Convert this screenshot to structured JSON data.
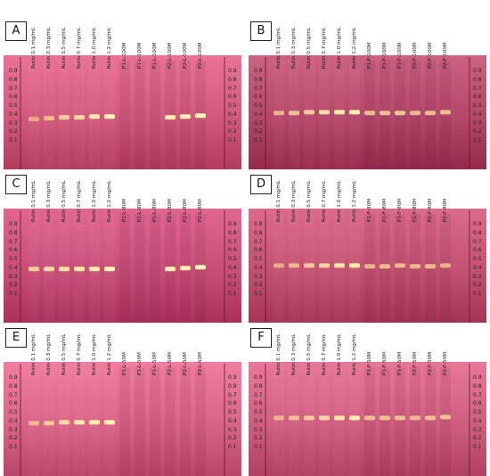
{
  "rf_ticks": [
    "0.9",
    "0.8",
    "0.7",
    "0.6",
    "0.5",
    "0.4",
    "0.3",
    "0.2",
    "0.1"
  ],
  "panels": [
    {
      "letter": "A",
      "lanes": [
        "Rutin 0.1 mg/mL",
        "Rutin 0.3 mg/mL",
        "Rutin 0.5 mg/mL",
        "Rutin 0.7 mg/mL",
        "Rutin 1.0 mg/mL",
        "Rutin 1.2 mg/mL",
        "P1-L-100M",
        "P1-L-100M",
        "P1-L-100M",
        "P2-L-100M",
        "P2-L-100M",
        "P2-L-100M"
      ],
      "band_rf": [
        0.35,
        0.36,
        0.37,
        0.37,
        0.38,
        0.38,
        null,
        null,
        null,
        0.37,
        0.38,
        0.39
      ],
      "band_strength": [
        0.35,
        0.5,
        0.65,
        0.75,
        0.9,
        1.0,
        0,
        0,
        0,
        0.9,
        0.95,
        1.0
      ],
      "plate_color": "#d15a7c"
    },
    {
      "letter": "B",
      "lanes": [
        "Rutin 0.1 mg/mL",
        "Rutin 0.3 mg/mL",
        "Rutin 0.5 mg/mL",
        "Rutin 0.7 mg/mL",
        "Rutin 1.0 mg/mL",
        "Rutin 1.2 mg/mL",
        "P1-F-100M",
        "P1-F-100M",
        "P1-F-100M",
        "P2-F-100M",
        "P2-F-100M",
        "P2-F-100M"
      ],
      "band_rf": [
        0.42,
        0.42,
        0.43,
        0.43,
        0.43,
        0.43,
        0.42,
        0.42,
        0.42,
        0.42,
        0.42,
        0.43
      ],
      "band_strength": [
        0.5,
        0.6,
        0.7,
        0.8,
        0.9,
        0.95,
        0.6,
        0.6,
        0.65,
        0.55,
        0.6,
        0.6
      ],
      "plate_color": "#b4486a"
    },
    {
      "letter": "C",
      "lanes": [
        "Rutin 0.1 mg/mL",
        "Rutin 0.3 mg/mL",
        "Rutin 0.5 mg/mL",
        "Rutin 0.7 mg/mL",
        "Rutin 1.0 mg/mL",
        "Rutin 1.2 mg/mL",
        "P1-L-80M",
        "P1-L-80M",
        "P1-L-80M",
        "P2-L-80M",
        "P2-L-80M",
        "P2-L-80M"
      ],
      "band_rf": [
        0.39,
        0.39,
        0.39,
        0.39,
        0.39,
        0.39,
        null,
        null,
        null,
        0.39,
        0.4,
        0.41
      ],
      "band_strength": [
        0.7,
        0.8,
        0.85,
        0.9,
        0.95,
        1.0,
        0,
        0,
        0,
        0.95,
        0.95,
        1.0
      ],
      "plate_color": "#c84e78"
    },
    {
      "letter": "D",
      "lanes": [
        "Rutin 0.1 mg/mL",
        "Rutin 0.3 mg/mL",
        "Rutin 0.5 mg/mL",
        "Rutin 0.7 mg/mL",
        "Rutin 1.0 mg/mL",
        "Rutin 1.2 mg/mL",
        "P1-F-80M",
        "P1-F-80M",
        "P1-F-80M",
        "P2-F-80M",
        "P2-F-80M",
        "P2-F-80M"
      ],
      "band_rf": [
        0.43,
        0.43,
        0.43,
        0.43,
        0.43,
        0.43,
        0.42,
        0.42,
        0.43,
        0.42,
        0.42,
        0.43
      ],
      "band_strength": [
        0.4,
        0.5,
        0.65,
        0.75,
        0.85,
        0.9,
        0.5,
        0.55,
        0.55,
        0.55,
        0.55,
        0.5
      ],
      "plate_color": "#c35272"
    },
    {
      "letter": "E",
      "lanes": [
        "Rutin 0.1 mg/mL",
        "Rutin 0.3 mg/mL",
        "Rutin 0.5 mg/mL",
        "Rutin 0.7 mg/mL",
        "Rutin 1.0 mg/mL",
        "Rutin 1.2 mg/mL",
        "P1-L-50M",
        "P1-L-50M",
        "P1-L-50M",
        "P2-L-50M",
        "P2-L-50M",
        "P2-L-50M"
      ],
      "band_rf": [
        0.38,
        0.38,
        0.39,
        0.39,
        0.39,
        0.39,
        null,
        null,
        null,
        null,
        null,
        null
      ],
      "band_strength": [
        0.45,
        0.6,
        0.75,
        0.85,
        0.9,
        0.95,
        0,
        0,
        0,
        0,
        0,
        0
      ],
      "plate_color": "#d86487"
    },
    {
      "letter": "F",
      "lanes": [
        "Rutin 0.1 mg/mL",
        "Rutin 0.3 mg/mL",
        "Rutin 0.5 mg/mL",
        "Rutin 0.7 mg/mL",
        "Rutin 1.0 mg/mL",
        "Rutin 1.2 mg/mL",
        "P1-F-50M",
        "P1-F-50M",
        "P1-F-50M",
        "P2-F-50M",
        "P2-F-50M",
        "P2-F-50M"
      ],
      "band_rf": [
        0.44,
        0.44,
        0.44,
        0.44,
        0.44,
        0.44,
        0.44,
        0.44,
        0.44,
        0.44,
        0.44,
        0.45
      ],
      "band_strength": [
        0.4,
        0.55,
        0.65,
        0.75,
        0.85,
        0.9,
        0.55,
        0.55,
        0.55,
        0.5,
        0.55,
        0.55
      ],
      "plate_color": "#cf5e80"
    }
  ]
}
